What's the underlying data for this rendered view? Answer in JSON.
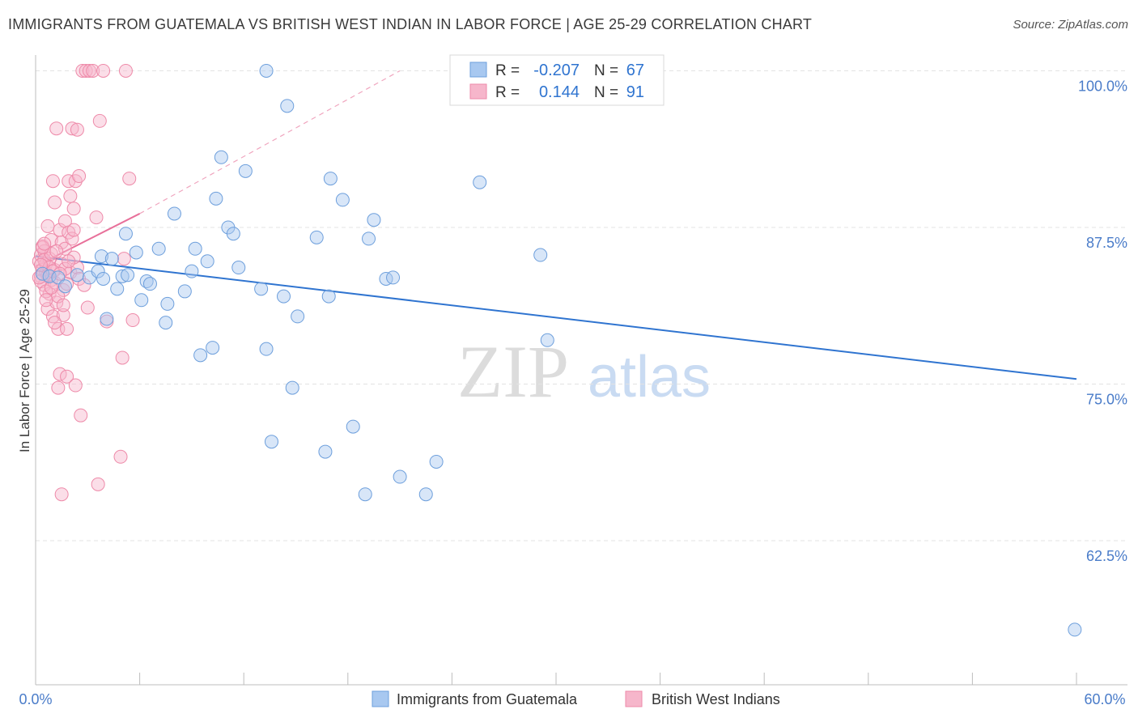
{
  "header": {
    "title": "IMMIGRANTS FROM GUATEMALA VS BRITISH WEST INDIAN IN LABOR FORCE | AGE 25-29 CORRELATION CHART",
    "source": "Source: ZipAtlas.com"
  },
  "watermark": {
    "zip": "ZIP",
    "atlas": "atlas"
  },
  "stats_box": {
    "rows": [
      {
        "r_label": "R =",
        "r_value": "-0.207",
        "n_label": "N =",
        "n_value": "67",
        "color": "#a8c8f0"
      },
      {
        "r_label": "R =",
        "r_value": "0.144",
        "n_label": "N =",
        "n_value": "91",
        "color": "#f6b6cb"
      }
    ]
  },
  "legend": {
    "items": [
      {
        "label": "Immigrants from Guatemala",
        "color": "#a8c8f0"
      },
      {
        "label": "British West Indians",
        "color": "#f6b6cb"
      }
    ]
  },
  "chart_data": {
    "type": "scatter",
    "xlabel": "",
    "ylabel": "In Labor Force | Age 25-29",
    "xlim": [
      0,
      60
    ],
    "ylim": [
      51,
      101
    ],
    "x_tick_labels": [
      "0.0%",
      "60.0%"
    ],
    "y_ticks": [
      62.5,
      75.0,
      87.5,
      100.0
    ],
    "y_tick_labels": [
      "62.5%",
      "75.0%",
      "87.5%",
      "100.0%"
    ],
    "grid": true,
    "legend_position": "bottom-center",
    "colors": {
      "blue_fill": "#a8c8f0",
      "blue_stroke": "#6d9fdc",
      "blue_line": "#2f74d0",
      "pink_fill": "#f6b6cb",
      "pink_stroke": "#ee8aa9",
      "pink_line": "#e8709a",
      "tick_label": "#4a7cc9"
    },
    "series": [
      {
        "name": "Immigrants from Guatemala",
        "trend": {
          "x": [
            0,
            60
          ],
          "y": [
            85.2,
            75.4
          ],
          "style": "solid"
        },
        "points": [
          [
            0.4,
            83.8
          ],
          [
            0.8,
            83.6
          ],
          [
            1.3,
            83.5
          ],
          [
            1.7,
            82.8
          ],
          [
            2.4,
            83.7
          ],
          [
            3.1,
            83.5
          ],
          [
            3.6,
            84.0
          ],
          [
            3.9,
            83.4
          ],
          [
            3.8,
            85.2
          ],
          [
            4.4,
            85.0
          ],
          [
            4.1,
            80.2
          ],
          [
            4.7,
            82.6
          ],
          [
            5.0,
            83.6
          ],
          [
            5.3,
            83.7
          ],
          [
            5.2,
            87.0
          ],
          [
            5.8,
            85.5
          ],
          [
            6.1,
            81.7
          ],
          [
            6.4,
            83.2
          ],
          [
            6.6,
            83.0
          ],
          [
            7.1,
            85.8
          ],
          [
            7.5,
            79.9
          ],
          [
            7.6,
            81.4
          ],
          [
            8.0,
            88.6
          ],
          [
            8.6,
            82.4
          ],
          [
            9.0,
            84.0
          ],
          [
            9.2,
            85.8
          ],
          [
            9.5,
            77.3
          ],
          [
            9.9,
            84.8
          ],
          [
            10.2,
            77.9
          ],
          [
            10.4,
            89.8
          ],
          [
            10.7,
            93.1
          ],
          [
            11.1,
            87.5
          ],
          [
            11.4,
            87.0
          ],
          [
            11.7,
            84.3
          ],
          [
            12.1,
            92.0
          ],
          [
            13.0,
            82.6
          ],
          [
            13.3,
            77.8
          ],
          [
            13.3,
            100.0
          ],
          [
            13.6,
            70.4
          ],
          [
            14.5,
            97.2
          ],
          [
            14.3,
            82.0
          ],
          [
            14.8,
            74.7
          ],
          [
            15.1,
            80.4
          ],
          [
            16.2,
            86.7
          ],
          [
            16.7,
            69.6
          ],
          [
            16.9,
            82.0
          ],
          [
            17.0,
            91.4
          ],
          [
            17.7,
            89.7
          ],
          [
            18.3,
            71.6
          ],
          [
            19.0,
            66.2
          ],
          [
            19.2,
            86.6
          ],
          [
            19.5,
            88.1
          ],
          [
            20.2,
            83.4
          ],
          [
            20.6,
            83.5
          ],
          [
            21.0,
            67.6
          ],
          [
            22.5,
            66.2
          ],
          [
            23.1,
            68.8
          ],
          [
            25.6,
            91.1
          ],
          [
            29.1,
            85.3
          ],
          [
            29.5,
            78.5
          ],
          [
            33.1,
            100.0
          ],
          [
            59.9,
            55.4
          ]
        ]
      },
      {
        "name": "British West Indians",
        "trend": {
          "x": [
            0,
            6
          ],
          "y": [
            84.4,
            88.6
          ],
          "style": "solid",
          "extended_to": [
            21,
            100
          ],
          "extended_style": "dashed"
        },
        "points": [
          [
            0.2,
            84.8
          ],
          [
            0.3,
            85.3
          ],
          [
            0.3,
            83.6
          ],
          [
            0.4,
            84.1
          ],
          [
            0.4,
            86.0
          ],
          [
            0.5,
            82.9
          ],
          [
            0.5,
            85.6
          ],
          [
            0.6,
            83.9
          ],
          [
            0.6,
            84.6
          ],
          [
            0.7,
            81.0
          ],
          [
            0.7,
            87.6
          ],
          [
            0.8,
            82.2
          ],
          [
            0.8,
            85.0
          ],
          [
            0.9,
            86.5
          ],
          [
            0.9,
            83.3
          ],
          [
            1.0,
            80.4
          ],
          [
            1.0,
            91.2
          ],
          [
            1.1,
            89.5
          ],
          [
            1.1,
            84.1
          ],
          [
            1.2,
            95.4
          ],
          [
            1.2,
            81.5
          ],
          [
            1.3,
            74.7
          ],
          [
            1.3,
            79.4
          ],
          [
            1.4,
            75.8
          ],
          [
            1.4,
            87.3
          ],
          [
            1.5,
            86.3
          ],
          [
            1.5,
            66.2
          ],
          [
            1.6,
            82.5
          ],
          [
            1.6,
            80.5
          ],
          [
            1.7,
            88.0
          ],
          [
            1.7,
            85.8
          ],
          [
            1.8,
            79.4
          ],
          [
            1.8,
            75.6
          ],
          [
            1.9,
            91.2
          ],
          [
            1.9,
            87.1
          ],
          [
            2.0,
            83.9
          ],
          [
            2.0,
            90.0
          ],
          [
            2.1,
            95.4
          ],
          [
            2.1,
            86.6
          ],
          [
            2.2,
            89.0
          ],
          [
            2.2,
            87.3
          ],
          [
            2.3,
            74.9
          ],
          [
            2.3,
            91.2
          ],
          [
            2.4,
            95.3
          ],
          [
            2.4,
            84.3
          ],
          [
            2.5,
            91.6
          ],
          [
            2.6,
            72.5
          ],
          [
            2.7,
            100.0
          ],
          [
            2.9,
            100.0
          ],
          [
            3.0,
            81.1
          ],
          [
            3.1,
            100.0
          ],
          [
            3.3,
            100.0
          ],
          [
            3.5,
            88.3
          ],
          [
            3.6,
            67.0
          ],
          [
            3.7,
            96.0
          ],
          [
            3.9,
            100.0
          ],
          [
            4.1,
            80.0
          ],
          [
            4.9,
            69.2
          ],
          [
            5.0,
            77.1
          ],
          [
            5.1,
            85.0
          ],
          [
            5.2,
            100.0
          ],
          [
            5.4,
            91.4
          ],
          [
            5.6,
            80.1
          ],
          [
            0.3,
            83.2
          ],
          [
            0.5,
            84.9
          ],
          [
            0.7,
            83.7
          ],
          [
            0.9,
            85.4
          ],
          [
            1.1,
            83.1
          ],
          [
            1.3,
            82.0
          ],
          [
            1.5,
            84.6
          ],
          [
            1.7,
            84.2
          ],
          [
            0.4,
            85.9
          ],
          [
            0.6,
            82.4
          ],
          [
            0.8,
            84.3
          ],
          [
            1.2,
            85.6
          ],
          [
            0.2,
            83.5
          ],
          [
            1.0,
            84.0
          ],
          [
            1.4,
            83.8
          ],
          [
            1.6,
            81.3
          ],
          [
            2.5,
            83.4
          ],
          [
            0.5,
            86.2
          ],
          [
            0.9,
            82.7
          ],
          [
            1.8,
            83.0
          ],
          [
            0.3,
            84.5
          ],
          [
            2.2,
            85.1
          ],
          [
            1.1,
            79.9
          ],
          [
            0.6,
            81.7
          ],
          [
            2.8,
            82.9
          ],
          [
            1.9,
            84.8
          ]
        ]
      }
    ]
  }
}
